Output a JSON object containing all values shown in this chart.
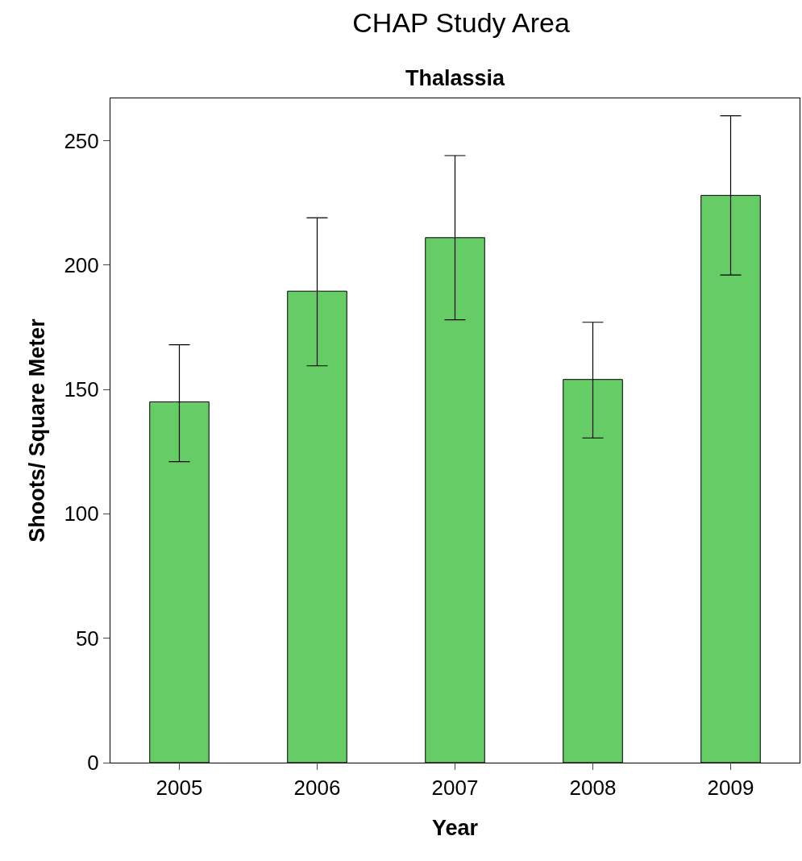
{
  "chart_data": {
    "type": "bar",
    "title": "CHAP Study Area",
    "subtitle": "Thalassia",
    "xlabel": "Year",
    "ylabel": "Shoots/ Square Meter",
    "categories": [
      "2005",
      "2006",
      "2007",
      "2008",
      "2009"
    ],
    "values": [
      145,
      189.5,
      211,
      154,
      228
    ],
    "errors": [
      [
        121,
        168
      ],
      [
        159.5,
        219
      ],
      [
        178,
        244
      ],
      [
        130.5,
        177
      ],
      [
        196,
        260
      ]
    ],
    "color": "#66cc66",
    "ylim": [
      0,
      267
    ],
    "yticks": [
      0,
      50,
      100,
      150,
      200,
      250
    ]
  }
}
